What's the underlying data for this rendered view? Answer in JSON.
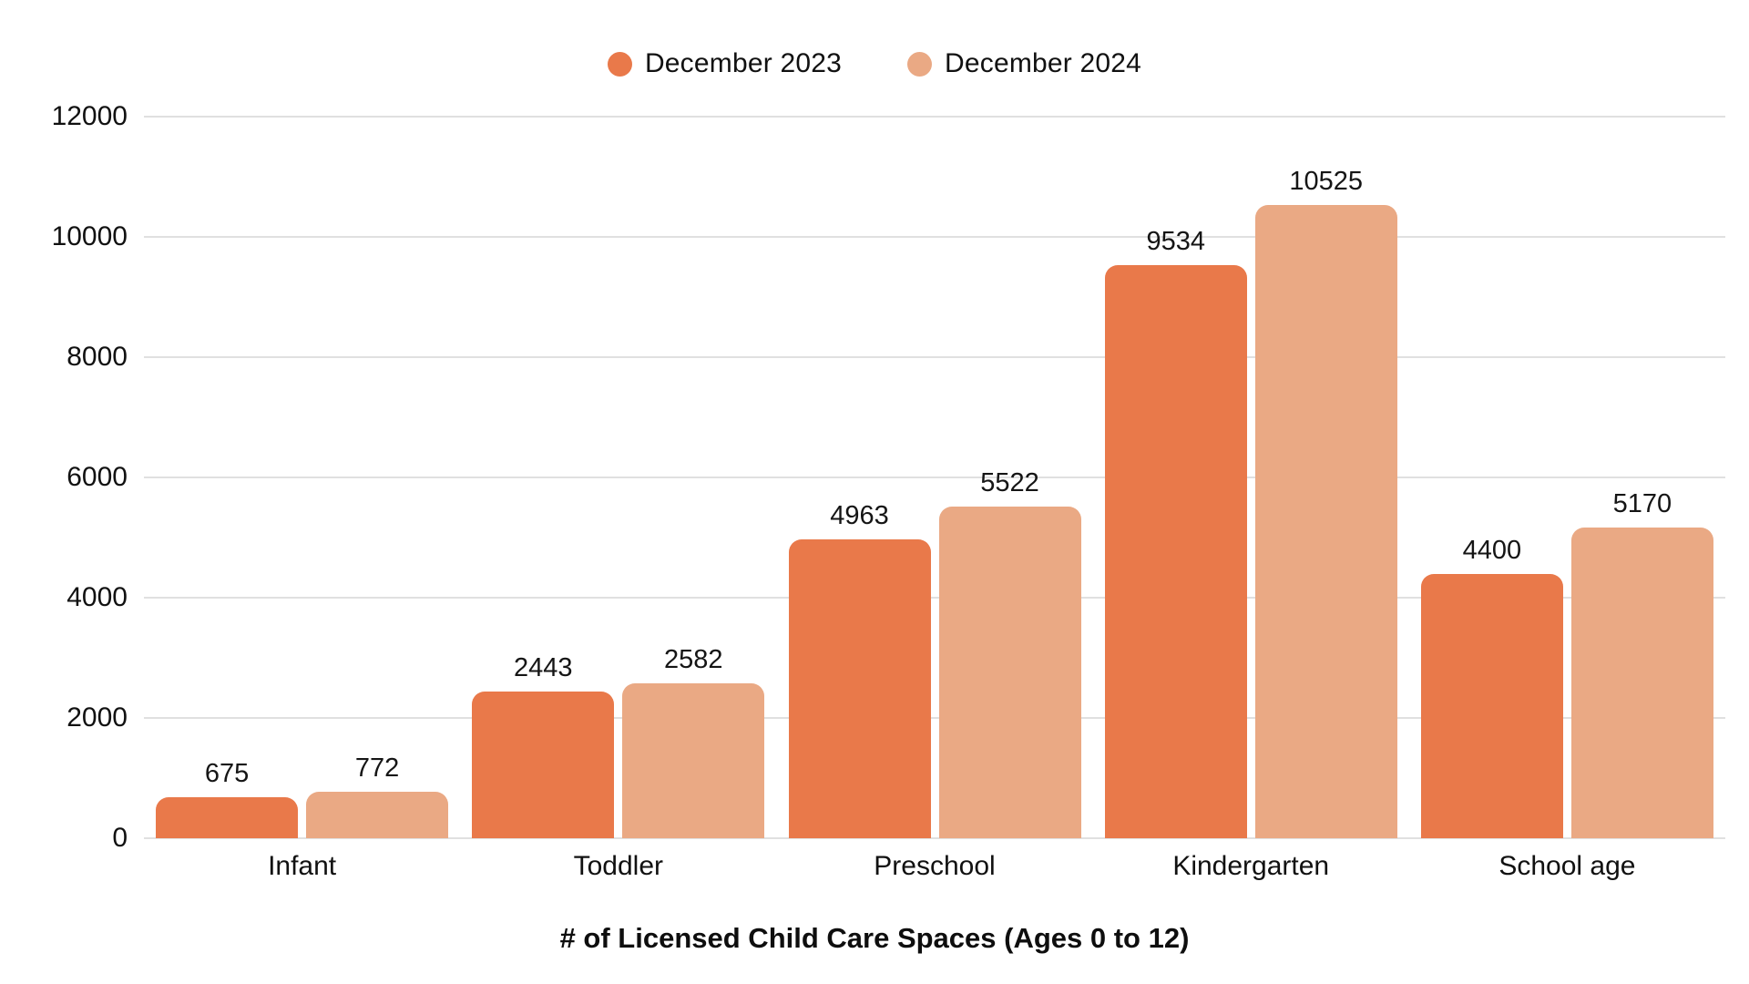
{
  "chart_data": {
    "type": "bar",
    "title": "# of Licensed Child Care Spaces (Ages 0 to 12)",
    "categories": [
      "Infant",
      "Toddler",
      "Preschool",
      "Kindergarten",
      "School age"
    ],
    "series": [
      {
        "name": "December 2023",
        "color": "#E9794A",
        "values": [
          675,
          2443,
          4963,
          9534,
          4400
        ]
      },
      {
        "name": "December 2024",
        "color": "#EAA984",
        "values": [
          772,
          2582,
          5522,
          10525,
          5170
        ]
      }
    ],
    "xlabel": "",
    "ylabel": "",
    "ylim": [
      0,
      12000
    ],
    "yticks": [
      0,
      2000,
      4000,
      6000,
      8000,
      10000,
      12000
    ],
    "grid": true,
    "gridline_color": "#e0e0e0",
    "background_color": "#ffffff",
    "text_color": "#111111",
    "legend_position": "top-center",
    "value_labels_shown": true
  }
}
